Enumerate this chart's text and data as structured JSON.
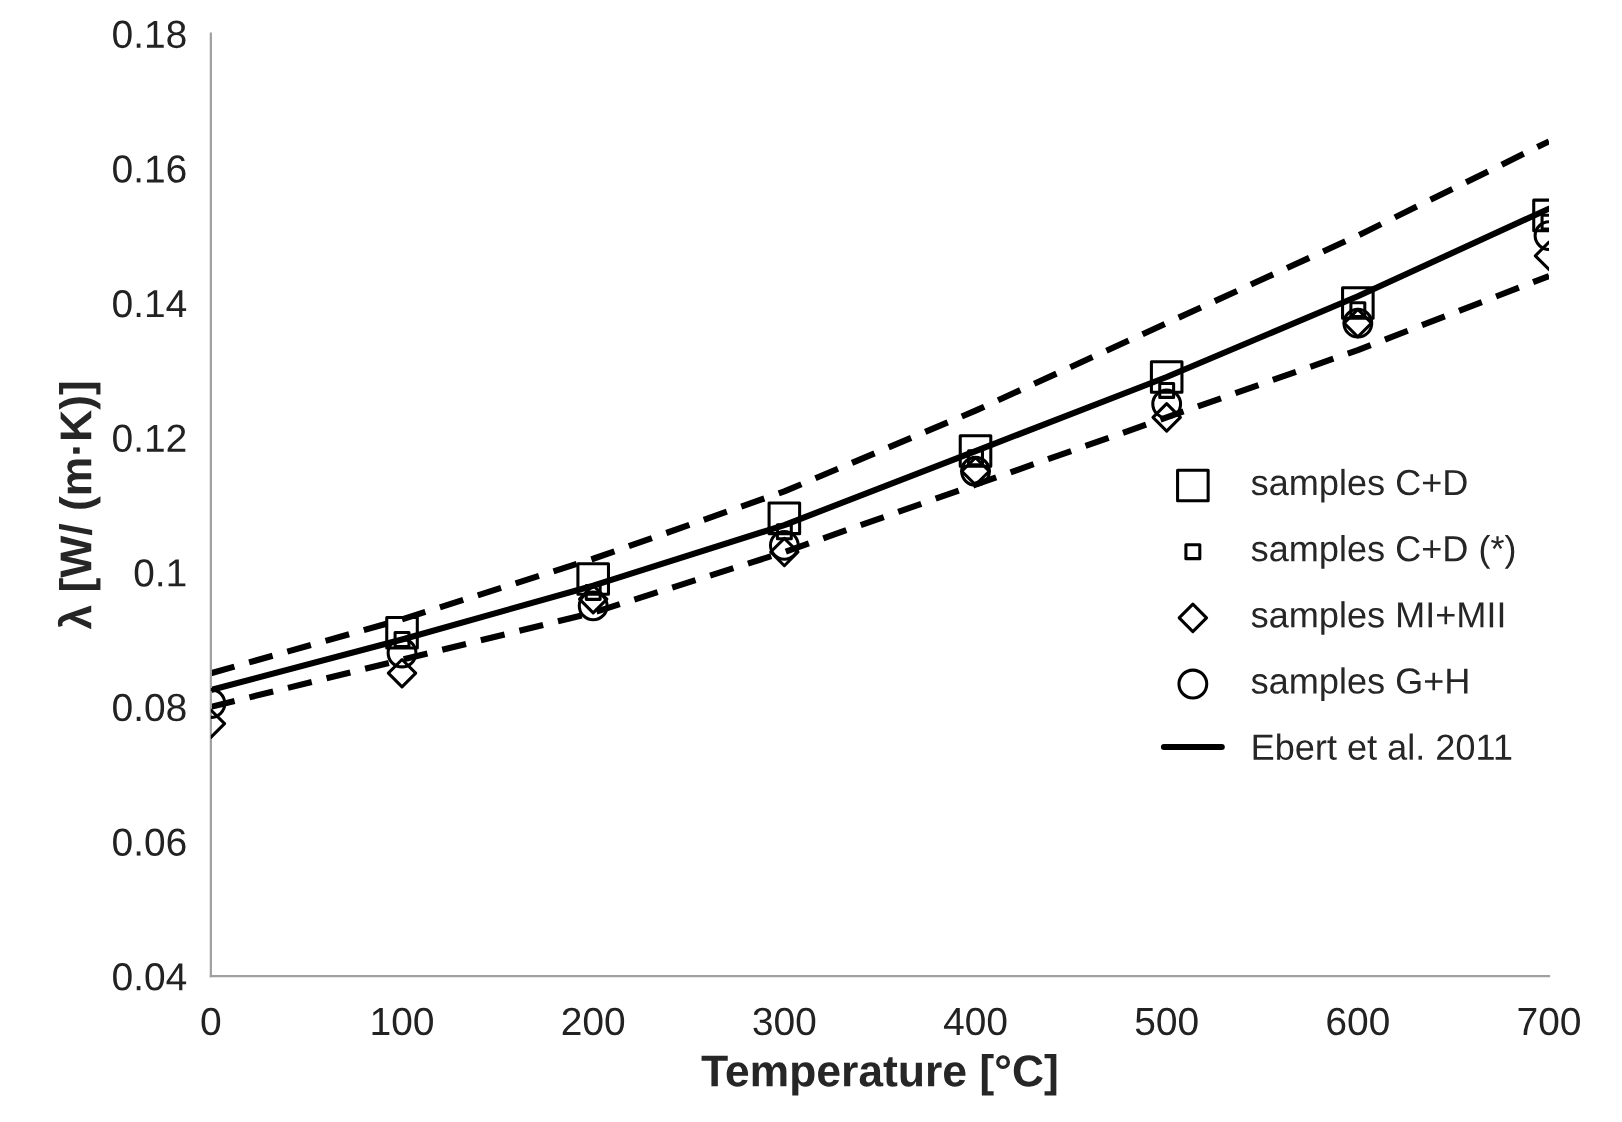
{
  "chart_data": {
    "type": "scatter",
    "xlabel": "Temperature [°C]",
    "ylabel": "λ [W/ (m·K)]",
    "x": [
      0,
      100,
      200,
      300,
      400,
      500,
      600,
      700
    ],
    "xlim": [
      0,
      700
    ],
    "xticks": [
      0,
      100,
      200,
      300,
      400,
      500,
      600,
      700
    ],
    "ylim": [
      0.04,
      0.18
    ],
    "yticks": [
      0.04,
      0.06,
      0.08,
      {
        "value": 0.1,
        "label": "0.1"
      },
      0.12,
      0.14,
      0.16,
      0.18
    ],
    "grid": false,
    "legend": "right",
    "series": [
      {
        "name": "samples C+D",
        "marker": "square",
        "color": "#000000",
        "values": [
          null,
          0.091,
          0.099,
          0.108,
          0.118,
          0.129,
          0.14,
          0.153
        ]
      },
      {
        "name": "samples C+D (*)",
        "marker": "square",
        "color": "#000000",
        "values": [
          null,
          0.09,
          0.097,
          0.106,
          0.117,
          0.127,
          0.139,
          0.152
        ]
      },
      {
        "name": "samples MI+MII",
        "marker": "diamond",
        "color": "#000000",
        "values": [
          0.0775,
          0.085,
          0.096,
          0.103,
          0.115,
          0.123,
          0.137,
          0.147
        ]
      },
      {
        "name": "samples G+H",
        "marker": "circle",
        "color": "#000000",
        "values": [
          0.0805,
          0.088,
          0.095,
          0.104,
          0.115,
          0.125,
          0.137,
          0.15
        ]
      },
      {
        "name": "Ebert et al. 2011",
        "type": "line",
        "line_style": "solid",
        "color": "#000000",
        "values": [
          0.0825,
          0.09,
          0.098,
          0.107,
          0.118,
          0.129,
          0.141,
          0.154
        ]
      },
      {
        "type": "line",
        "line_style": "dashed",
        "color": "#000000",
        "values": [
          0.085,
          0.093,
          0.102,
          0.112,
          0.124,
          0.137,
          0.15,
          0.164
        ]
      },
      {
        "type": "line",
        "line_style": "dashed",
        "color": "#000000",
        "values": [
          0.08,
          0.087,
          0.094,
          0.103,
          0.113,
          0.123,
          0.133,
          0.144
        ]
      }
    ]
  }
}
